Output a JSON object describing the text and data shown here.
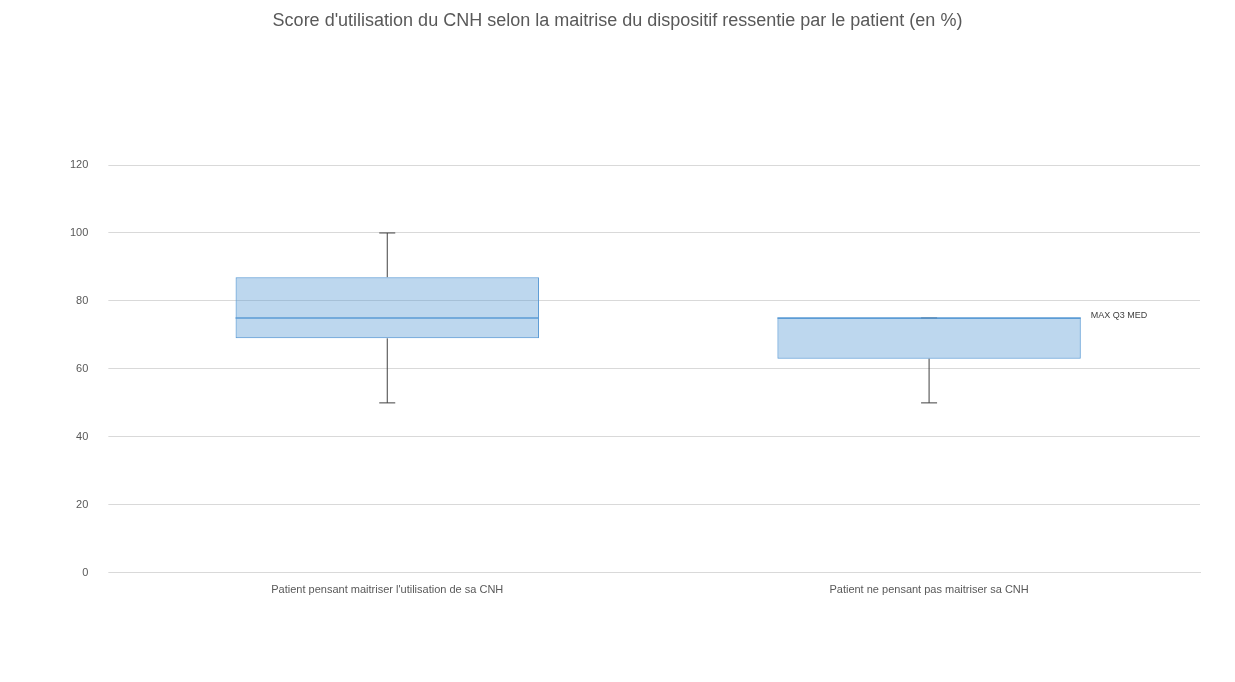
{
  "chart_data": {
    "type": "box",
    "title": "Score d'utilisation du CNH selon la maitrise du dispositif ressentie par le patient (en %)",
    "categories": [
      "Patient pensant maitriser l'utilisation de sa CNH",
      "Patient ne pensant pas maitriser sa CNH"
    ],
    "boxes": [
      {
        "low": 50,
        "q1": 69,
        "median": 75,
        "q3": 87,
        "high": 100
      },
      {
        "low": 50,
        "q1": 63,
        "median": 75,
        "q3": 75,
        "high": 75
      }
    ],
    "color": "#5b9bd5",
    "ylim": [
      0,
      120
    ],
    "yticks": [
      0,
      20,
      40,
      60,
      80,
      100,
      120
    ],
    "grid": "y",
    "legend": false,
    "annotations": [
      "MAX Q3 MED"
    ]
  }
}
